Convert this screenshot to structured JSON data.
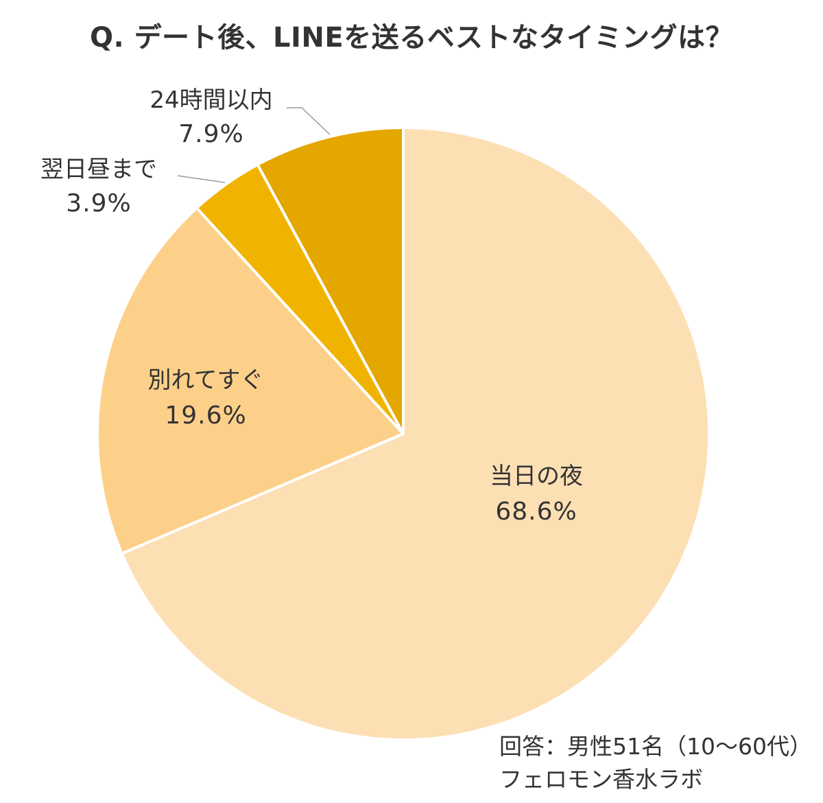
{
  "chart_data": {
    "type": "pie",
    "title": "Q. デート後、LINEを送るベストなタイミングは？",
    "start_angle_deg": 0,
    "direction": "clockwise",
    "slices": [
      {
        "label": "当日の夜",
        "value": 68.6,
        "value_label": "68.6%",
        "color": "#FDDFB4"
      },
      {
        "label": "別れてすぐ",
        "value": 19.6,
        "value_label": "19.6%",
        "color": "#FDD08A"
      },
      {
        "label": "翌日昼まで",
        "value": 3.9,
        "value_label": "3.9%",
        "color": "#F0B400"
      },
      {
        "label": "24時間以内",
        "value": 7.9,
        "value_label": "7.9%",
        "color": "#E3A700"
      }
    ],
    "separator_color": "#FFFFFF"
  },
  "footer": {
    "respondents": "回答：男性51名（10～60代）",
    "source": "フェロモン香水ラボ"
  }
}
